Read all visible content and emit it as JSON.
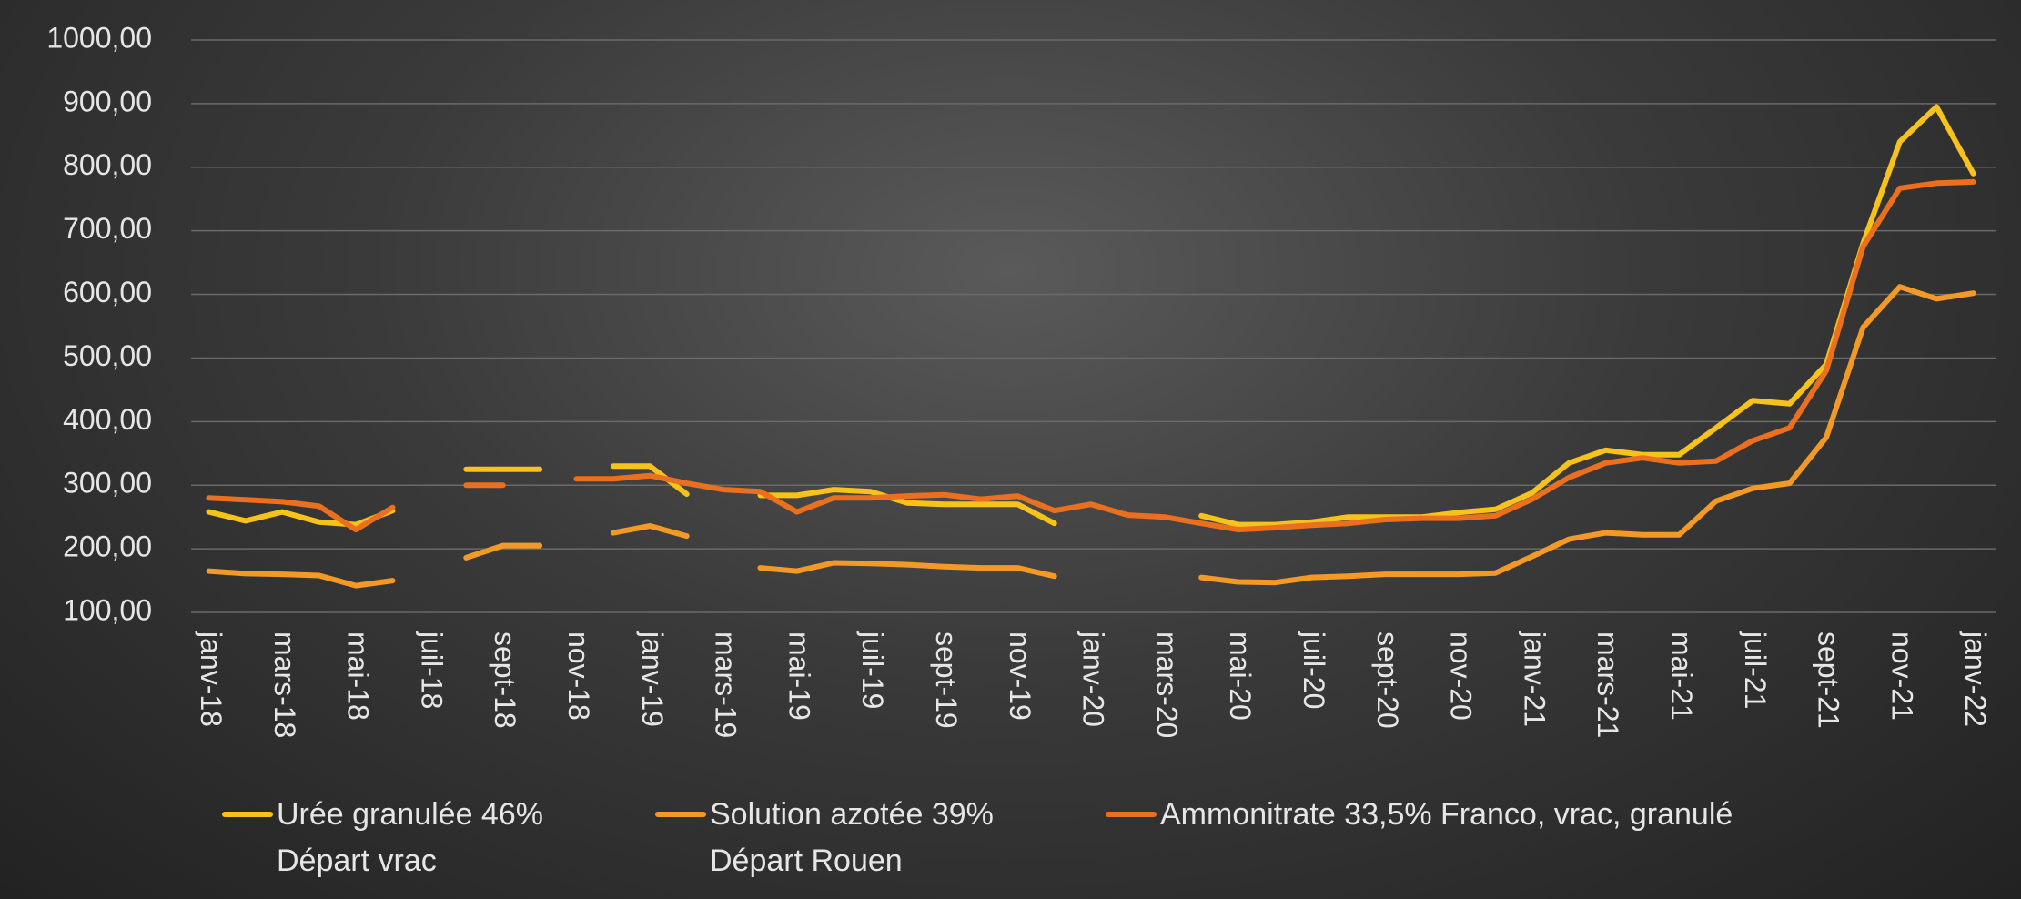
{
  "chart_data": {
    "type": "line",
    "categories": [
      "janv-18",
      null,
      "mars-18",
      null,
      "mai-18",
      null,
      "juil-18",
      null,
      "sept-18",
      null,
      "nov-18",
      null,
      "janv-19",
      null,
      "mars-19",
      null,
      "mai-19",
      null,
      "juil-19",
      null,
      "sept-19",
      null,
      "nov-19",
      null,
      "janv-20",
      null,
      "mars-20",
      null,
      "mai-20",
      null,
      "juil-20",
      null,
      "sept-20",
      null,
      "nov-20",
      null,
      "janv-21",
      null,
      "mars-21",
      null,
      "mai-21",
      null,
      "juil-21",
      null,
      "sept-21",
      null,
      "nov-21",
      null,
      "janv-22"
    ],
    "series": [
      {
        "name": "Urée granulée 46% Départ vrac",
        "color": "#f7c21a",
        "values": [
          258,
          244,
          258,
          242,
          238,
          260,
          null,
          325,
          325,
          325,
          null,
          330,
          330,
          286,
          null,
          284,
          284,
          293,
          290,
          272,
          270,
          270,
          270,
          240,
          null,
          null,
          null,
          252,
          238,
          238,
          242,
          250,
          250,
          250,
          257,
          262,
          288,
          335,
          355,
          348,
          348,
          390,
          433,
          428,
          490,
          680,
          840,
          895,
          790
        ]
      },
      {
        "name": "Solution azotée 39% Départ Rouen",
        "color": "#f39a26",
        "values": [
          165,
          161,
          160,
          158,
          142,
          150,
          null,
          186,
          205,
          205,
          null,
          225,
          236,
          220,
          null,
          170,
          165,
          178,
          177,
          175,
          172,
          170,
          170,
          157,
          null,
          null,
          null,
          155,
          148,
          147,
          155,
          157,
          160,
          160,
          160,
          162,
          188,
          215,
          225,
          222,
          222,
          275,
          295,
          303,
          375,
          548,
          612,
          593,
          602
        ]
      },
      {
        "name": "Ammonitrate 33,5% Franco, vrac, granulé",
        "color": "#ea6f1f",
        "values": [
          280,
          277,
          274,
          267,
          230,
          265,
          null,
          300,
          300,
          null,
          310,
          310,
          315,
          303,
          293,
          290,
          258,
          280,
          280,
          283,
          285,
          278,
          283,
          260,
          270,
          253,
          250,
          240,
          230,
          233,
          237,
          240,
          246,
          248,
          248,
          252,
          278,
          312,
          335,
          343,
          335,
          338,
          370,
          390,
          480,
          675,
          767,
          775,
          777
        ]
      }
    ],
    "ylim": [
      100,
      1000
    ],
    "yticks": [
      {
        "value": 100,
        "label": "100,00"
      },
      {
        "value": 200,
        "label": "200,00"
      },
      {
        "value": 300,
        "label": "300,00"
      },
      {
        "value": 400,
        "label": "400,00"
      },
      {
        "value": 500,
        "label": "500,00"
      },
      {
        "value": 600,
        "label": "600,00"
      },
      {
        "value": 700,
        "label": "700,00"
      },
      {
        "value": 800,
        "label": "800,00"
      },
      {
        "value": 900,
        "label": "900,00"
      },
      {
        "value": 1000,
        "label": "1000,00"
      }
    ],
    "grid": true,
    "legend": "bottom"
  }
}
